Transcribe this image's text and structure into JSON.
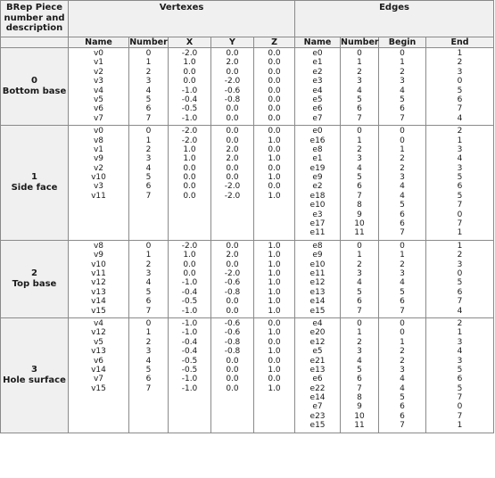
{
  "headers": {
    "piece_lines": [
      "BRep Piece",
      "number and",
      "description"
    ],
    "vertexes": "Vertexes",
    "edges": "Edges",
    "vertex_cols": [
      "Name",
      "Number",
      "X",
      "Y",
      "Z"
    ],
    "edge_cols": [
      "Name",
      "Number",
      "Begin",
      "End"
    ]
  },
  "pieces": [
    {
      "number": "0",
      "description": "Bottom base",
      "vertices": {
        "name": [
          "v0",
          "v1",
          "v2",
          "v3",
          "v4",
          "v5",
          "v6",
          "v7"
        ],
        "number": [
          "0",
          "1",
          "2",
          "3",
          "4",
          "5",
          "6",
          "7"
        ],
        "x": [
          "-2.0",
          "1.0",
          "0.0",
          "0.0",
          "-1.0",
          "-0.4",
          "-0.5",
          "-1.0"
        ],
        "y": [
          "0.0",
          "2.0",
          "0.0",
          "-2.0",
          "-0.6",
          "-0.8",
          "0.0",
          "0.0"
        ],
        "z": [
          "0.0",
          "0.0",
          "0.0",
          "0.0",
          "0.0",
          "0.0",
          "0.0",
          "0.0"
        ]
      },
      "edges": {
        "name": [
          "e0",
          "e1",
          "e2",
          "e3",
          "e4",
          "e5",
          "e6",
          "e7"
        ],
        "number": [
          "0",
          "1",
          "2",
          "3",
          "4",
          "5",
          "6",
          "7"
        ],
        "begin": [
          "0",
          "1",
          "2",
          "3",
          "4",
          "5",
          "6",
          "7"
        ],
        "end": [
          "1",
          "2",
          "3",
          "0",
          "5",
          "6",
          "7",
          "4"
        ]
      }
    },
    {
      "number": "1",
      "description": "Side face",
      "vertices": {
        "name": [
          "v0",
          "v8",
          "v1",
          "v9",
          "v2",
          "v10",
          "v3",
          "v11"
        ],
        "number": [
          "0",
          "1",
          "2",
          "3",
          "4",
          "5",
          "6",
          "7"
        ],
        "x": [
          "-2.0",
          "-2.0",
          "1.0",
          "1.0",
          "0.0",
          "0.0",
          "0.0",
          "0.0"
        ],
        "y": [
          "0.0",
          "0.0",
          "2.0",
          "2.0",
          "0.0",
          "0.0",
          "-2.0",
          "-2.0"
        ],
        "z": [
          "0.0",
          "1.0",
          "0.0",
          "1.0",
          "0.0",
          "1.0",
          "0.0",
          "1.0"
        ]
      },
      "edges": {
        "name": [
          "e0",
          "e16",
          "e8",
          "e1",
          "e19",
          "e9",
          "e2",
          "e18",
          "e10",
          "e3",
          "e17",
          "e11"
        ],
        "number": [
          "0",
          "1",
          "2",
          "3",
          "4",
          "5",
          "6",
          "7",
          "8",
          "9",
          "10",
          "11"
        ],
        "begin": [
          "0",
          "0",
          "1",
          "2",
          "2",
          "3",
          "4",
          "4",
          "5",
          "6",
          "6",
          "7"
        ],
        "end": [
          "2",
          "1",
          "3",
          "4",
          "3",
          "5",
          "6",
          "5",
          "7",
          "0",
          "7",
          "1"
        ]
      }
    },
    {
      "number": "2",
      "description": "Top base",
      "vertices": {
        "name": [
          "v8",
          "v9",
          "v10",
          "v11",
          "v12",
          "v13",
          "v14",
          "v15"
        ],
        "number": [
          "0",
          "1",
          "2",
          "3",
          "4",
          "5",
          "6",
          "7"
        ],
        "x": [
          "-2.0",
          "1.0",
          "0.0",
          "0.0",
          "-1.0",
          "-0.4",
          "-0.5",
          "-1.0"
        ],
        "y": [
          "0.0",
          "2.0",
          "0.0",
          "-2.0",
          "-0.6",
          "-0.8",
          "0.0",
          "0.0"
        ],
        "z": [
          "1.0",
          "1.0",
          "1.0",
          "1.0",
          "1.0",
          "1.0",
          "1.0",
          "1.0"
        ]
      },
      "edges": {
        "name": [
          "e8",
          "e9",
          "e10",
          "e11",
          "e12",
          "e13",
          "e14",
          "e15"
        ],
        "number": [
          "0",
          "1",
          "2",
          "3",
          "4",
          "5",
          "6",
          "7"
        ],
        "begin": [
          "0",
          "1",
          "2",
          "3",
          "4",
          "5",
          "6",
          "7"
        ],
        "end": [
          "1",
          "2",
          "3",
          "0",
          "5",
          "6",
          "7",
          "4"
        ]
      }
    },
    {
      "number": "3",
      "description": "Hole surface",
      "vertices": {
        "name": [
          "v4",
          "v12",
          "v5",
          "v13",
          "v6",
          "v14",
          "v7",
          "v15"
        ],
        "number": [
          "0",
          "1",
          "2",
          "3",
          "4",
          "5",
          "6",
          "7"
        ],
        "x": [
          "-1.0",
          "-1.0",
          "-0.4",
          "-0.4",
          "-0.5",
          "-0.5",
          "-1.0",
          "-1.0"
        ],
        "y": [
          "-0.6",
          "-0.6",
          "-0.8",
          "-0.8",
          "0.0",
          "0.0",
          "0.0",
          "0.0"
        ],
        "z": [
          "0.0",
          "1.0",
          "0.0",
          "1.0",
          "0.0",
          "1.0",
          "0.0",
          "1.0"
        ]
      },
      "edges": {
        "name": [
          "e4",
          "e20",
          "e12",
          "e5",
          "e21",
          "e13",
          "e6",
          "e22",
          "e14",
          "e7",
          "e23",
          "e15"
        ],
        "number": [
          "0",
          "1",
          "2",
          "3",
          "4",
          "5",
          "6",
          "7",
          "8",
          "9",
          "10",
          "11"
        ],
        "begin": [
          "0",
          "0",
          "1",
          "2",
          "2",
          "3",
          "4",
          "4",
          "5",
          "6",
          "6",
          "7"
        ],
        "end": [
          "2",
          "1",
          "3",
          "4",
          "3",
          "5",
          "6",
          "5",
          "7",
          "0",
          "7",
          "1"
        ]
      }
    }
  ]
}
